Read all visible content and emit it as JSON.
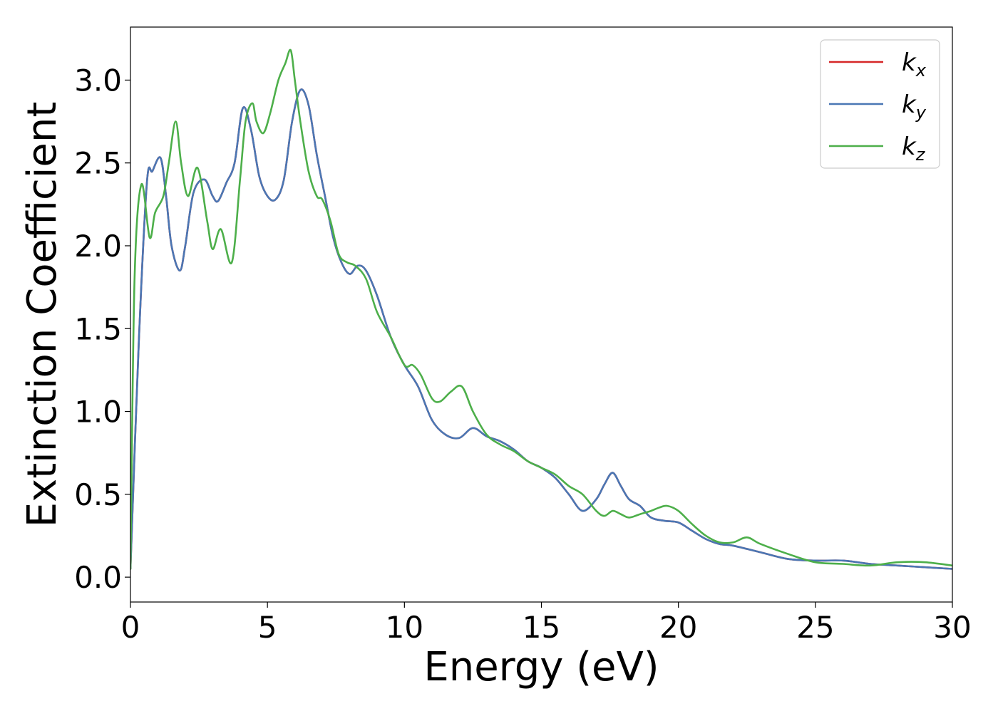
{
  "chart_data": {
    "type": "line",
    "title": "",
    "xlabel": "Energy (eV)",
    "ylabel": "Extinction Coefficient",
    "xlim": [
      0,
      30
    ],
    "ylim": [
      -0.15,
      3.32
    ],
    "xticks": [
      0,
      5,
      10,
      15,
      20,
      25,
      30
    ],
    "xtick_labels": [
      "0",
      "5",
      "10",
      "15",
      "20",
      "25",
      "30"
    ],
    "yticks": [
      0.0,
      0.5,
      1.0,
      1.5,
      2.0,
      2.5,
      3.0
    ],
    "ytick_labels": [
      "0.0",
      "0.5",
      "1.0",
      "1.5",
      "2.0",
      "2.5",
      "3.0"
    ],
    "grid": false,
    "legend_position": "top-right",
    "series": [
      {
        "name": "k_x",
        "legend_base": "k",
        "legend_sub": "x",
        "color": "#d62728",
        "x": [
          0,
          0.3,
          0.6,
          0.8,
          1.1,
          1.3,
          1.5,
          1.8,
          2.0,
          2.3,
          2.7,
          3.0,
          3.2,
          3.5,
          3.8,
          4.1,
          4.4,
          4.7,
          5.0,
          5.3,
          5.6,
          5.9,
          6.2,
          6.5,
          6.8,
          7.1,
          7.4,
          7.7,
          8.0,
          8.3,
          8.6,
          9.0,
          9.5,
          10.0,
          10.5,
          11.0,
          11.5,
          12.0,
          12.5,
          13.0,
          13.5,
          14.0,
          14.5,
          15.0,
          15.5,
          16.0,
          16.5,
          17.0,
          17.3,
          17.6,
          17.9,
          18.2,
          18.6,
          19.0,
          19.5,
          20.0,
          20.5,
          21.0,
          21.5,
          22.0,
          23.0,
          24.0,
          25.0,
          26.0,
          27.0,
          28.0,
          29.0,
          30.0
        ],
        "values": [
          0.05,
          1.4,
          2.38,
          2.45,
          2.53,
          2.3,
          2.0,
          1.85,
          2.0,
          2.32,
          2.4,
          2.3,
          2.27,
          2.38,
          2.5,
          2.83,
          2.7,
          2.42,
          2.3,
          2.28,
          2.4,
          2.75,
          2.94,
          2.85,
          2.55,
          2.3,
          2.05,
          1.9,
          1.83,
          1.88,
          1.85,
          1.7,
          1.45,
          1.28,
          1.15,
          0.95,
          0.86,
          0.84,
          0.9,
          0.85,
          0.82,
          0.77,
          0.7,
          0.66,
          0.6,
          0.5,
          0.4,
          0.47,
          0.56,
          0.63,
          0.55,
          0.47,
          0.43,
          0.36,
          0.34,
          0.33,
          0.28,
          0.23,
          0.2,
          0.19,
          0.15,
          0.11,
          0.1,
          0.1,
          0.08,
          0.07,
          0.06,
          0.05
        ]
      },
      {
        "name": "k_y",
        "legend_base": "k",
        "legend_sub": "y",
        "color": "#4a77b4",
        "x": [
          0,
          0.3,
          0.6,
          0.8,
          1.1,
          1.3,
          1.5,
          1.8,
          2.0,
          2.3,
          2.7,
          3.0,
          3.2,
          3.5,
          3.8,
          4.1,
          4.4,
          4.7,
          5.0,
          5.3,
          5.6,
          5.9,
          6.2,
          6.5,
          6.8,
          7.1,
          7.4,
          7.7,
          8.0,
          8.3,
          8.6,
          9.0,
          9.5,
          10.0,
          10.5,
          11.0,
          11.5,
          12.0,
          12.5,
          13.0,
          13.5,
          14.0,
          14.5,
          15.0,
          15.5,
          16.0,
          16.5,
          17.0,
          17.3,
          17.6,
          17.9,
          18.2,
          18.6,
          19.0,
          19.5,
          20.0,
          20.5,
          21.0,
          21.5,
          22.0,
          23.0,
          24.0,
          25.0,
          26.0,
          27.0,
          28.0,
          29.0,
          30.0
        ],
        "values": [
          0.05,
          1.4,
          2.38,
          2.45,
          2.53,
          2.3,
          2.0,
          1.85,
          2.0,
          2.32,
          2.4,
          2.3,
          2.27,
          2.38,
          2.5,
          2.83,
          2.7,
          2.42,
          2.3,
          2.28,
          2.4,
          2.75,
          2.94,
          2.85,
          2.55,
          2.3,
          2.05,
          1.9,
          1.83,
          1.88,
          1.85,
          1.7,
          1.45,
          1.28,
          1.15,
          0.95,
          0.86,
          0.84,
          0.9,
          0.85,
          0.82,
          0.77,
          0.7,
          0.66,
          0.6,
          0.5,
          0.4,
          0.47,
          0.56,
          0.63,
          0.55,
          0.47,
          0.43,
          0.36,
          0.34,
          0.33,
          0.28,
          0.23,
          0.2,
          0.19,
          0.15,
          0.11,
          0.1,
          0.1,
          0.08,
          0.07,
          0.06,
          0.05
        ]
      },
      {
        "name": "k_z",
        "legend_base": "k",
        "legend_sub": "z",
        "color": "#4daf4a",
        "x": [
          0,
          0.15,
          0.4,
          0.7,
          0.9,
          1.2,
          1.4,
          1.65,
          1.85,
          2.1,
          2.45,
          2.8,
          3.0,
          3.3,
          3.7,
          4.0,
          4.2,
          4.45,
          4.6,
          4.85,
          5.1,
          5.4,
          5.65,
          5.85,
          6.0,
          6.2,
          6.5,
          6.8,
          7.0,
          7.3,
          7.6,
          7.9,
          8.2,
          8.6,
          9.0,
          9.5,
          10.0,
          10.3,
          10.6,
          11.0,
          11.3,
          11.7,
          12.1,
          12.5,
          13.0,
          13.5,
          14.0,
          14.5,
          15.0,
          15.5,
          16.0,
          16.5,
          17.0,
          17.3,
          17.6,
          17.9,
          18.2,
          18.6,
          19.0,
          19.3,
          19.6,
          20.0,
          20.5,
          21.0,
          21.5,
          22.0,
          22.5,
          23.0,
          24.0,
          25.0,
          26.0,
          27.0,
          28.0,
          29.0,
          30.0
        ],
        "values": [
          0.05,
          1.8,
          2.37,
          2.05,
          2.2,
          2.3,
          2.5,
          2.75,
          2.5,
          2.3,
          2.47,
          2.15,
          1.98,
          2.1,
          1.9,
          2.4,
          2.75,
          2.86,
          2.75,
          2.68,
          2.8,
          3.0,
          3.1,
          3.18,
          3.0,
          2.75,
          2.45,
          2.3,
          2.28,
          2.15,
          1.95,
          1.9,
          1.88,
          1.8,
          1.6,
          1.45,
          1.28,
          1.28,
          1.22,
          1.08,
          1.06,
          1.12,
          1.15,
          1.0,
          0.86,
          0.8,
          0.76,
          0.7,
          0.66,
          0.62,
          0.55,
          0.5,
          0.4,
          0.37,
          0.4,
          0.38,
          0.36,
          0.38,
          0.4,
          0.42,
          0.43,
          0.4,
          0.32,
          0.25,
          0.21,
          0.21,
          0.24,
          0.2,
          0.14,
          0.09,
          0.08,
          0.07,
          0.09,
          0.09,
          0.07
        ]
      }
    ]
  }
}
